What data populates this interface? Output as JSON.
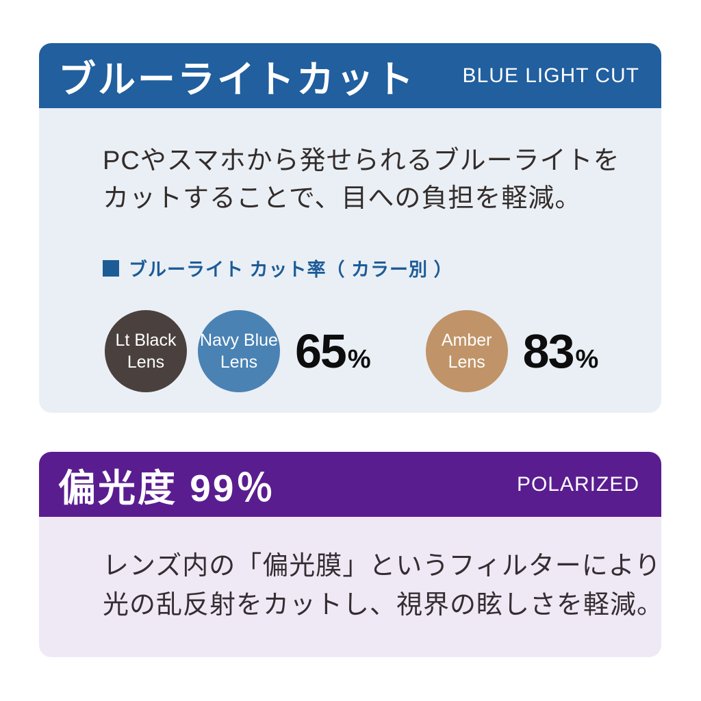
{
  "blue_light_section": {
    "background": "#e9eff5",
    "header": {
      "title_jp": "ブルーライトカット",
      "title_en": "BLUE LIGHT CUT",
      "background": "#215f9e"
    },
    "description": [
      "PCやスマホから発せられるブルーライトを",
      "カットすることで、目への負担を軽減。"
    ],
    "chart_label": "ブルーライト カット率（ カラー別 ）",
    "label_color": "#1d5b97",
    "groups": [
      {
        "cut_rate": "65",
        "unit": "%",
        "lenses": [
          {
            "name": "Lt Black Lens",
            "line1": "Lt Black",
            "line2": "Lens",
            "color": "#4a413e"
          },
          {
            "name": "Navy Blue Lens",
            "line1": "Navy Blue",
            "line2": "Lens",
            "color": "#4a82b4"
          }
        ]
      },
      {
        "cut_rate": "83",
        "unit": "%",
        "lenses": [
          {
            "name": "Amber Lens",
            "line1": "Amber",
            "line2": "Lens",
            "color": "#c09468"
          }
        ]
      }
    ]
  },
  "polarized_section": {
    "background": "#efe9f5",
    "header": {
      "title_jp": "偏光度 99％",
      "title_en": "POLARIZED",
      "background": "#5a1d90"
    },
    "description": [
      "レンズ内の「偏光膜」というフィルターにより",
      "光の乱反射をカットし、視界の眩しさを軽減。"
    ]
  }
}
